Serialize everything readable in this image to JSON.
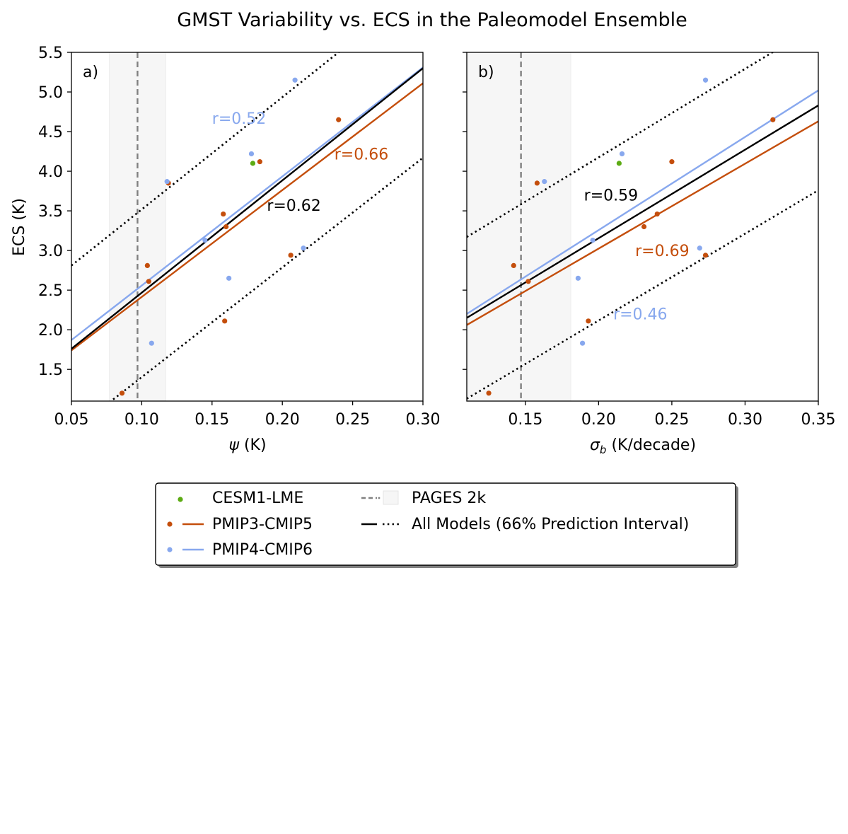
{
  "title": "GMST Variability vs. ECS in the Paleomodel Ensemble",
  "colors": {
    "pmip3": "#c44e0c",
    "pmip4": "#88a8ee",
    "cesm": "#5cab13",
    "all": "#000000",
    "pages": "#808080",
    "band": "#f6f6f6"
  },
  "chart_data": [
    {
      "type": "scatter",
      "panel": "a)",
      "xlabel_var": "ψ",
      "xlabel_unit": " (K)",
      "ylabel": "ECS (K)",
      "xlim": [
        0.05,
        0.3
      ],
      "ylim": [
        1.1,
        5.5
      ],
      "xticks": [
        0.05,
        0.1,
        0.15,
        0.2,
        0.25,
        0.3
      ],
      "xtick_labels": [
        "0.05",
        "0.10",
        "0.15",
        "0.20",
        "0.25",
        "0.30"
      ],
      "yticks": [
        1.5,
        2.0,
        2.5,
        3.0,
        3.5,
        4.0,
        4.5,
        5.0,
        5.5
      ],
      "ytick_labels": [
        "1.5",
        "2.0",
        "2.5",
        "3.0",
        "3.5",
        "4.0",
        "4.5",
        "5.0",
        "5.5"
      ],
      "pages_2k": {
        "value": 0.097,
        "band": [
          0.077,
          0.117
        ]
      },
      "series": [
        {
          "name": "CESM1-LME",
          "color_key": "cesm",
          "x": [
            0.179
          ],
          "y": [
            4.1
          ]
        },
        {
          "name": "PMIP3-CMIP5",
          "color_key": "pmip3",
          "x": [
            0.086,
            0.104,
            0.105,
            0.119,
            0.158,
            0.16,
            0.159,
            0.184,
            0.206,
            0.24
          ],
          "y": [
            1.2,
            2.81,
            2.61,
            3.85,
            3.46,
            3.3,
            2.11,
            4.12,
            2.94,
            4.65
          ]
        },
        {
          "name": "PMIP4-CMIP6",
          "color_key": "pmip4",
          "x": [
            0.107,
            0.118,
            0.145,
            0.162,
            0.178,
            0.209,
            0.215
          ],
          "y": [
            1.83,
            3.87,
            3.13,
            2.65,
            4.22,
            5.15,
            3.03
          ]
        }
      ],
      "fits": [
        {
          "name": "PMIP4-CMIP6",
          "color_key": "pmip4",
          "x": [
            0.05,
            0.3
          ],
          "y": [
            1.87,
            5.31
          ]
        },
        {
          "name": "PMIP3-CMIP5",
          "color_key": "pmip3",
          "x": [
            0.05,
            0.3
          ],
          "y": [
            1.74,
            5.11
          ]
        },
        {
          "name": "All Models",
          "color_key": "all",
          "x": [
            0.05,
            0.3
          ],
          "y": [
            1.76,
            5.3
          ]
        },
        {
          "name": "Upper 66% PI",
          "color_key": "all",
          "dotted": true,
          "x": [
            0.05,
            0.3
          ],
          "y": [
            2.81,
            6.35
          ]
        },
        {
          "name": "Lower 66% PI",
          "color_key": "all",
          "dotted": true,
          "x": [
            0.05,
            0.3
          ],
          "y": [
            0.71,
            4.17
          ]
        }
      ],
      "annotations": [
        {
          "text": "r=0.52",
          "color_key": "pmip4",
          "x": 0.15,
          "y": 4.6
        },
        {
          "text": "r=0.66",
          "color_key": "pmip3",
          "x": 0.237,
          "y": 4.15
        },
        {
          "text": "r=0.62",
          "color_key": "all",
          "x": 0.189,
          "y": 3.5
        }
      ]
    },
    {
      "type": "scatter",
      "panel": "b)",
      "xlabel_var": "σ",
      "xlabel_sub": "b",
      "xlabel_unit": " (K/decade)",
      "ylabel": "",
      "xlim": [
        0.11,
        0.35
      ],
      "ylim": [
        1.1,
        5.5
      ],
      "xticks": [
        0.15,
        0.2,
        0.25,
        0.3,
        0.35
      ],
      "xtick_labels": [
        "0.15",
        "0.20",
        "0.25",
        "0.30",
        "0.35"
      ],
      "yticks": [
        1.5,
        2.0,
        2.5,
        3.0,
        3.5,
        4.0,
        4.5,
        5.0,
        5.5
      ],
      "ytick_labels": [],
      "pages_2k": {
        "value": 0.147,
        "band": [
          0.11,
          0.181
        ]
      },
      "series": [
        {
          "name": "CESM1-LME",
          "color_key": "cesm",
          "x": [
            0.214
          ],
          "y": [
            4.1
          ]
        },
        {
          "name": "PMIP3-CMIP5",
          "color_key": "pmip3",
          "x": [
            0.125,
            0.142,
            0.152,
            0.158,
            0.193,
            0.231,
            0.24,
            0.25,
            0.273,
            0.319
          ],
          "y": [
            1.2,
            2.81,
            2.61,
            3.85,
            2.11,
            3.3,
            3.46,
            4.12,
            2.94,
            4.65
          ]
        },
        {
          "name": "PMIP4-CMIP6",
          "color_key": "pmip4",
          "x": [
            0.163,
            0.186,
            0.189,
            0.196,
            0.216,
            0.269,
            0.273
          ],
          "y": [
            3.87,
            2.65,
            1.83,
            3.13,
            4.22,
            3.03,
            5.15
          ]
        }
      ],
      "fits": [
        {
          "name": "PMIP4-CMIP6",
          "color_key": "pmip4",
          "x": [
            0.11,
            0.35
          ],
          "y": [
            2.2,
            5.02
          ]
        },
        {
          "name": "PMIP3-CMIP5",
          "color_key": "pmip3",
          "x": [
            0.11,
            0.35
          ],
          "y": [
            2.06,
            4.63
          ]
        },
        {
          "name": "All Models",
          "color_key": "all",
          "x": [
            0.11,
            0.35
          ],
          "y": [
            2.15,
            4.83
          ]
        },
        {
          "name": "Upper 66% PI",
          "color_key": "all",
          "dotted": true,
          "x": [
            0.11,
            0.35
          ],
          "y": [
            3.17,
            5.85
          ]
        },
        {
          "name": "Lower 66% PI",
          "color_key": "all",
          "dotted": true,
          "x": [
            0.11,
            0.35
          ],
          "y": [
            1.13,
            3.76
          ]
        }
      ],
      "annotations": [
        {
          "text": "r=0.59",
          "color_key": "all",
          "x": 0.19,
          "y": 3.63
        },
        {
          "text": "r=0.69",
          "color_key": "pmip3",
          "x": 0.225,
          "y": 2.93
        },
        {
          "text": "r=0.46",
          "color_key": "pmip4",
          "x": 0.21,
          "y": 2.13
        }
      ]
    }
  ],
  "legend": {
    "col1": [
      {
        "label": "CESM1-LME",
        "marker_key": "cesm",
        "line_key": null
      },
      {
        "label": "PMIP3-CMIP5",
        "marker_key": "pmip3",
        "line_key": "pmip3"
      },
      {
        "label": "PMIP4-CMIP6",
        "marker_key": "pmip4",
        "line_key": "pmip4"
      }
    ],
    "col2": [
      {
        "label": "PAGES 2k"
      },
      {
        "label": "All Models (66% Prediction Interval)"
      }
    ]
  }
}
